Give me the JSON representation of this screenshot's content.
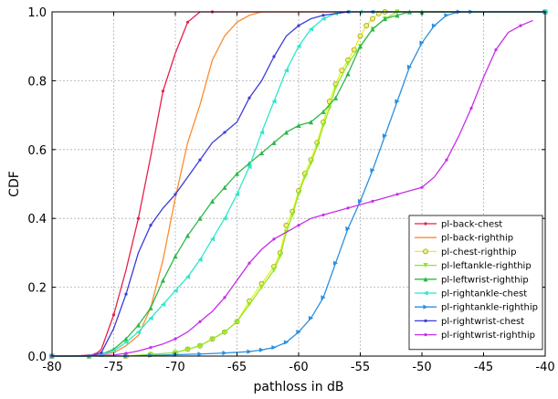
{
  "chart_data": {
    "type": "line",
    "title": "",
    "xlabel": "pathloss in dB",
    "ylabel": "CDF",
    "xlim": [
      -80,
      -40
    ],
    "ylim": [
      0.0,
      1.0
    ],
    "xticks": [
      "-80",
      "-75",
      "-70",
      "-65",
      "-60",
      "-55",
      "-50",
      "-45",
      "-40"
    ],
    "yticks": [
      "0.0",
      "0.2",
      "0.4",
      "0.6",
      "0.8",
      "1.0"
    ],
    "grid": true,
    "legend_position": "bottom-right",
    "series": [
      {
        "name": "pl-back-chest",
        "color": "#e8214a",
        "marker": "point",
        "x": [
          -80,
          -78,
          -76.5,
          -76,
          -75,
          -74,
          -73,
          -72,
          -71,
          -70,
          -69,
          -68,
          -67,
          -66,
          -40
        ],
        "y": [
          0,
          0,
          0.005,
          0.02,
          0.12,
          0.25,
          0.4,
          0.58,
          0.77,
          0.88,
          0.97,
          1.0,
          1.0,
          1.0,
          1.0
        ]
      },
      {
        "name": "pl-back-righthip",
        "color": "#ff8b2e",
        "marker": "none",
        "x": [
          -80,
          -77,
          -76,
          -75,
          -74,
          -73,
          -72,
          -71,
          -70,
          -69,
          -68,
          -67,
          -66,
          -65,
          -64,
          -63,
          -62,
          -61,
          -60,
          -40
        ],
        "y": [
          0,
          0,
          0.005,
          0.01,
          0.03,
          0.06,
          0.14,
          0.28,
          0.46,
          0.62,
          0.73,
          0.86,
          0.93,
          0.97,
          0.99,
          1.0,
          1.0,
          1.0,
          1.0,
          1.0
        ]
      },
      {
        "name": "pl-chest-righthip",
        "color": "#e6f01a",
        "marker": "circle",
        "x": [
          -80,
          -74,
          -72,
          -70,
          -69,
          -68,
          -67,
          -66,
          -65,
          -64,
          -63,
          -62,
          -61.5,
          -61,
          -60.5,
          -60,
          -59.5,
          -59,
          -58.5,
          -58,
          -57.5,
          -57,
          -56.5,
          -56,
          -55.5,
          -55,
          -54.5,
          -54,
          -53.5,
          -53,
          -40
        ],
        "y": [
          0,
          0.0,
          0.005,
          0.01,
          0.02,
          0.03,
          0.05,
          0.07,
          0.1,
          0.16,
          0.21,
          0.26,
          0.3,
          0.38,
          0.42,
          0.48,
          0.53,
          0.57,
          0.62,
          0.68,
          0.74,
          0.79,
          0.83,
          0.86,
          0.89,
          0.93,
          0.96,
          0.98,
          0.995,
          1.0,
          1.0
        ]
      },
      {
        "name": "pl-leftankle-righthip",
        "color": "#8ee827",
        "marker": "triangle-down",
        "x": [
          -80,
          -74,
          -72,
          -70,
          -69,
          -68,
          -67,
          -66,
          -65,
          -64,
          -63,
          -62,
          -61.5,
          -61,
          -60.5,
          -60,
          -59.5,
          -59,
          -58.5,
          -58,
          -57.5,
          -57,
          -56,
          -55,
          -54,
          -53,
          -52,
          -40
        ],
        "y": [
          0,
          0.0,
          0.005,
          0.01,
          0.02,
          0.03,
          0.05,
          0.07,
          0.1,
          0.15,
          0.2,
          0.25,
          0.29,
          0.36,
          0.41,
          0.47,
          0.52,
          0.56,
          0.61,
          0.67,
          0.72,
          0.78,
          0.85,
          0.9,
          0.95,
          0.98,
          1.0,
          1.0
        ]
      },
      {
        "name": "pl-leftwrist-righthip",
        "color": "#2db84a",
        "marker": "triangle-up",
        "x": [
          -80,
          -77,
          -76,
          -75,
          -74,
          -73,
          -72,
          -71,
          -70,
          -69,
          -68,
          -67,
          -66,
          -65,
          -64,
          -63,
          -62,
          -61,
          -60,
          -59,
          -58,
          -57,
          -56,
          -55,
          -54,
          -53,
          -52,
          -51,
          -50,
          -40
        ],
        "y": [
          0,
          0,
          0.005,
          0.02,
          0.05,
          0.09,
          0.14,
          0.22,
          0.29,
          0.35,
          0.4,
          0.45,
          0.49,
          0.53,
          0.56,
          0.59,
          0.62,
          0.65,
          0.67,
          0.68,
          0.71,
          0.75,
          0.82,
          0.9,
          0.95,
          0.98,
          0.99,
          1.0,
          1.0,
          1.0
        ]
      },
      {
        "name": "pl-rightankle-chest",
        "color": "#2ee8c9",
        "marker": "triangle-left",
        "x": [
          -80,
          -77,
          -76,
          -75,
          -74,
          -73,
          -72,
          -71,
          -70,
          -69,
          -68,
          -67,
          -66,
          -65,
          -64,
          -63,
          -62,
          -61,
          -60,
          -59,
          -58,
          -57,
          -56,
          -55,
          -54,
          -40
        ],
        "y": [
          0,
          0,
          0.005,
          0.015,
          0.04,
          0.07,
          0.11,
          0.15,
          0.19,
          0.23,
          0.28,
          0.34,
          0.4,
          0.47,
          0.55,
          0.65,
          0.74,
          0.83,
          0.9,
          0.95,
          0.98,
          0.995,
          1.0,
          1.0,
          1.0,
          1.0
        ]
      },
      {
        "name": "pl-rightankle-righthip",
        "color": "#2a8fe0",
        "marker": "triangle-right",
        "x": [
          -80,
          -74,
          -72,
          -70,
          -68,
          -66,
          -64,
          -63,
          -62,
          -61,
          -60,
          -59,
          -58,
          -57,
          -56,
          -55,
          -54,
          -53,
          -52,
          -51,
          -50,
          -49,
          -48,
          -47,
          -46,
          -40
        ],
        "y": [
          0,
          0.0,
          0.002,
          0.004,
          0.006,
          0.009,
          0.013,
          0.018,
          0.025,
          0.04,
          0.07,
          0.11,
          0.17,
          0.27,
          0.37,
          0.45,
          0.54,
          0.64,
          0.74,
          0.84,
          0.91,
          0.96,
          0.99,
          1.0,
          1.0,
          1.0
        ]
      },
      {
        "name": "pl-rightwrist-chest",
        "color": "#3d3dd8",
        "marker": "point",
        "x": [
          -80,
          -77,
          -76,
          -75,
          -74,
          -73,
          -72,
          -71,
          -70,
          -69,
          -68,
          -67,
          -66,
          -65,
          -64,
          -63,
          -62,
          -61,
          -60,
          -59,
          -58,
          -57,
          -56,
          -55,
          -54,
          -40
        ],
        "y": [
          0,
          0,
          0.01,
          0.08,
          0.18,
          0.3,
          0.38,
          0.43,
          0.47,
          0.52,
          0.57,
          0.62,
          0.65,
          0.68,
          0.75,
          0.8,
          0.87,
          0.93,
          0.96,
          0.98,
          0.99,
          0.995,
          1.0,
          1.0,
          1.0,
          1.0
        ]
      },
      {
        "name": "pl-rightwrist-righthip",
        "color": "#c52fe8",
        "marker": "point",
        "x": [
          -80,
          -75,
          -74,
          -73,
          -72,
          -71,
          -70,
          -69,
          -68,
          -67,
          -66,
          -65,
          -64,
          -63,
          -62,
          -61,
          -60,
          -59,
          -58,
          -57,
          -56,
          -55,
          -54,
          -53,
          -52,
          -51,
          -50,
          -49,
          -48,
          -47,
          -46,
          -45,
          -44,
          -43,
          -42,
          -41
        ],
        "y": [
          0,
          0.003,
          0.008,
          0.015,
          0.025,
          0.035,
          0.05,
          0.07,
          0.1,
          0.13,
          0.17,
          0.22,
          0.27,
          0.31,
          0.34,
          0.36,
          0.38,
          0.4,
          0.41,
          0.42,
          0.43,
          0.44,
          0.45,
          0.46,
          0.47,
          0.48,
          0.49,
          0.52,
          0.57,
          0.64,
          0.72,
          0.81,
          0.89,
          0.94,
          0.96,
          0.975
        ]
      }
    ]
  }
}
